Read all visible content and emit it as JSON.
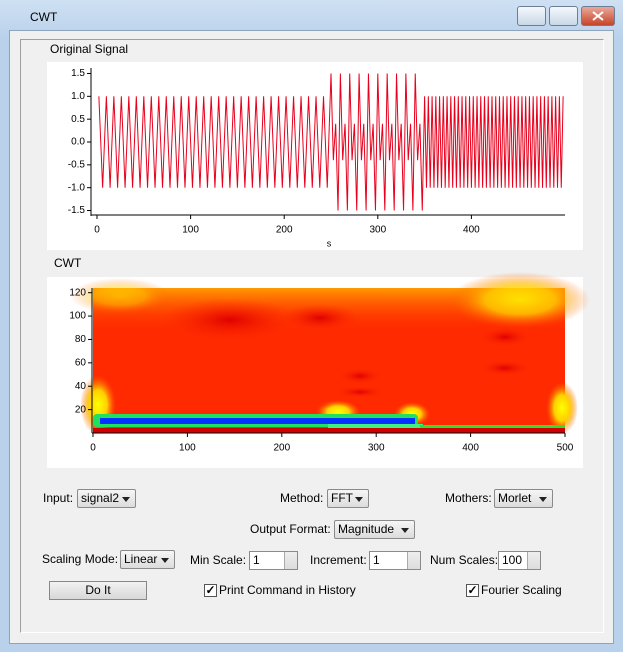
{
  "window": {
    "title": "CWT"
  },
  "chart_data": [
    {
      "type": "line",
      "title": "Original Signal",
      "x_label": "s",
      "color": "#e8001c",
      "x": [
        2,
        6,
        10,
        14,
        18,
        22,
        26,
        30,
        34,
        38,
        42,
        46,
        50,
        54,
        58,
        62,
        66,
        70,
        74,
        78,
        82,
        86,
        90,
        94,
        98,
        102,
        106,
        110,
        114,
        118,
        122,
        126,
        130,
        134,
        138,
        142,
        146,
        150,
        154,
        158,
        162,
        166,
        170,
        174,
        178,
        182,
        186,
        190,
        194,
        198,
        202,
        206,
        210,
        214,
        218,
        222,
        226,
        230,
        234,
        238,
        242,
        246,
        250,
        252.5,
        255,
        257.5,
        260,
        262.5,
        265,
        267.5,
        270,
        272.5,
        275,
        277.5,
        280,
        282.5,
        285,
        287.5,
        290,
        292.5,
        295,
        297.5,
        300,
        302.5,
        305,
        307.5,
        310,
        312.5,
        315,
        317.5,
        320,
        322.5,
        325,
        327.5,
        330,
        332.5,
        335,
        337.5,
        340,
        342.5,
        345,
        347.5,
        350,
        352,
        354,
        356,
        358,
        360,
        362,
        364,
        366,
        368,
        370,
        372,
        374,
        376,
        378,
        380,
        382,
        384,
        386,
        388,
        390,
        392,
        394,
        396,
        398,
        400,
        402,
        404,
        406,
        408,
        410,
        412,
        414,
        416,
        418,
        420,
        422,
        424,
        426,
        428,
        430,
        432,
        434,
        436,
        438,
        440,
        442,
        444,
        446,
        448,
        450,
        452,
        454,
        456,
        458,
        460,
        462,
        464,
        466,
        468,
        470,
        472,
        474,
        476,
        478,
        480,
        482,
        484,
        486,
        488,
        490,
        492,
        494,
        496,
        498
      ],
      "values": [
        1,
        -1,
        1,
        -1,
        1,
        -1,
        1,
        -1,
        1,
        -1,
        1,
        -1,
        1,
        -1,
        1,
        -1,
        1,
        -1,
        1,
        -1,
        1,
        -1,
        1,
        -1,
        1,
        -1,
        1,
        -1,
        1,
        -1,
        1,
        -1,
        1,
        -1,
        1,
        -1,
        1,
        -1,
        1,
        -1,
        1,
        -1,
        1,
        -1,
        1,
        -1,
        1,
        -1,
        1,
        -1,
        1,
        -1,
        1,
        -1,
        1,
        -1,
        1,
        -1,
        1,
        -1,
        1,
        -1,
        1.5,
        -0.4,
        0.4,
        -1.5,
        1.5,
        -0.4,
        0.4,
        -1.5,
        1.5,
        -0.4,
        0.4,
        -1.5,
        1.5,
        -0.4,
        0.4,
        -1.5,
        1.5,
        -0.4,
        0.4,
        -1.5,
        1.5,
        -0.4,
        0.4,
        -1.5,
        1.5,
        -0.4,
        0.4,
        -1.5,
        1.5,
        -0.4,
        0.4,
        -1.5,
        1.5,
        -0.4,
        0.4,
        -1.5,
        1.5,
        -0.4,
        0.4,
        -1.5,
        1,
        -1,
        1,
        -1,
        1,
        -1,
        1,
        -1,
        1,
        -1,
        1,
        -1,
        1,
        -1,
        1,
        -1,
        1,
        -1,
        1,
        -1,
        1,
        -1,
        1,
        -1,
        1,
        -1,
        1,
        -1,
        1,
        -1,
        1,
        -1,
        1,
        -1,
        1,
        -1,
        1,
        -1,
        1,
        -1,
        1,
        -1,
        1,
        -1,
        1,
        -1,
        1,
        -1,
        1,
        -1,
        1,
        -1,
        1,
        -1,
        1,
        -1,
        1,
        -1,
        1,
        -1,
        1,
        -1,
        1,
        -1,
        1,
        -1,
        1,
        -1,
        1,
        -1,
        1,
        -1,
        1,
        -1,
        1
      ],
      "xlim": [
        0,
        500
      ],
      "xticks": [
        0,
        100,
        200,
        300,
        400
      ],
      "ylim": [
        -1.62,
        1.62
      ],
      "yticks": [
        1.5,
        {
          "value": 1,
          "label": "1.0"
        },
        0.5,
        {
          "value": 0,
          "label": "0.0"
        },
        -0.5,
        {
          "value": -1,
          "label": "-1.0"
        },
        -1.5
      ]
    },
    {
      "type": "heatmap",
      "title": "CWT",
      "xlim": [
        0,
        500
      ],
      "xticks": [
        0,
        100,
        200,
        300,
        400,
        500
      ],
      "ylim": [
        0,
        124
      ],
      "yticks": [
        20,
        40,
        60,
        80,
        100,
        120
      ]
    }
  ],
  "controls": {
    "input": {
      "label": "Input:",
      "value": "signal2"
    },
    "method": {
      "label": "Method:",
      "value": "FFT"
    },
    "mothers": {
      "label": "Mothers:",
      "value": "Morlet"
    },
    "output_format": {
      "label": "Output Format:",
      "value": "Magnitude"
    },
    "scaling_mode": {
      "label": "Scaling Mode:",
      "value": "Linear"
    },
    "min_scale": {
      "label": "Min Scale:",
      "value": 1
    },
    "increment": {
      "label": "Increment:",
      "value": 1
    },
    "num_scales": {
      "label": "Num Scales:",
      "value": 100
    },
    "do_it": "Do It",
    "print_command": {
      "label": "Print Command in History",
      "checked": true
    },
    "fourier_scaling": {
      "label": "Fourier Scaling",
      "checked": true
    }
  }
}
